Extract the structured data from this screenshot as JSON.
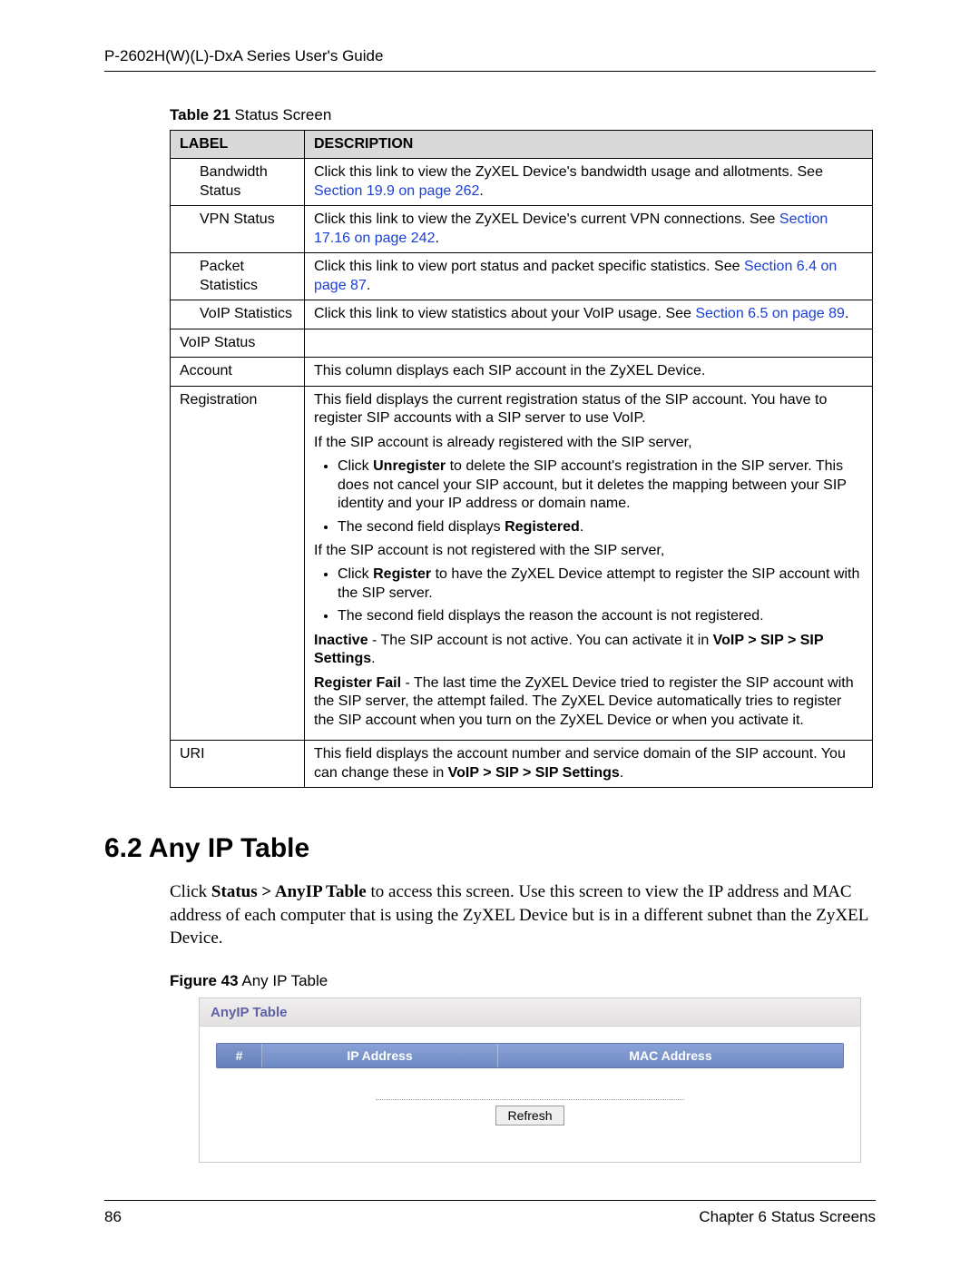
{
  "header": {
    "text": "P-2602H(W)(L)-DxA Series User's Guide"
  },
  "table_caption": {
    "bold": "Table 21",
    "rest": "   Status Screen"
  },
  "table": {
    "head": {
      "label": "LABEL",
      "desc": "DESCRIPTION"
    },
    "rows": {
      "bandwidth": {
        "label_html": "<span class=\"indent-sub\">Bandwidth Status</span>",
        "desc_html": "Click this link to view the ZyXEL Device's bandwidth usage and allotments. See <span class=\"link\">Section 19.9 on page 262</span>."
      },
      "vpn": {
        "label_html": "<span class=\"indent-sub\">VPN Status</span>",
        "desc_html": "Click this link to view the ZyXEL Device's current VPN connections. See <span class=\"link\">Section 17.16 on page 242</span>."
      },
      "packet": {
        "label_html": "<span class=\"indent-sub\">Packet Statistics</span>",
        "desc_html": "Click this link to view port status and packet specific statistics. See <span class=\"link\">Section 6.4 on page 87</span>."
      },
      "voipstats": {
        "label_html": "<span class=\"indent-sub\">VoIP Statistics</span>",
        "desc_html": "Click this link to view statistics about your VoIP usage. See <span class=\"link\">Section 6.5 on page 89</span>."
      },
      "voipstatus": {
        "label_html": "VoIP Status",
        "desc_html": ""
      },
      "account": {
        "label_html": "Account",
        "desc_html": "This column displays each SIP account in the ZyXEL Device."
      },
      "registration": {
        "label_html": "Registration",
        "desc_html": "<div class=\"para-block\"><p>This field displays the current registration status of the SIP account. You have to register SIP accounts with a SIP server to use VoIP.</p><p>If the SIP account is already registered with the SIP server,</p><ul><li>Click <b>Unregister</b> to delete the SIP account's registration in the SIP server. This does not cancel your SIP account, but it deletes the mapping between your SIP identity and your IP address or domain name.</li><li>The second field displays <b>Registered</b>.</li></ul><p>If the SIP account is not registered with the SIP server,</p><ul><li>Click <b>Register</b> to have the ZyXEL Device attempt to register the SIP account with the SIP server.</li><li>The second field displays the reason the account is not registered.</li></ul><p><b>Inactive</b> - The SIP account is not active. You can activate it in <b>VoIP &gt; SIP &gt; SIP Settings</b>.</p><p><b>Register Fail</b> - The last time the ZyXEL Device tried to register the SIP account with the SIP server, the attempt failed. The ZyXEL Device automatically tries to register the SIP account when you turn on the ZyXEL Device or when you activate it.</p></div>"
      },
      "uri": {
        "label_html": "URI",
        "desc_html": "This field displays the account number and service domain of the SIP account. You can change these in <b>VoIP &gt; SIP &gt; SIP Settings</b>."
      }
    }
  },
  "section": {
    "heading": "6.2  Any IP Table",
    "body_html": "Click <b>Status &gt; AnyIP Table</b> to access this screen. Use this screen to view the IP address and MAC address of each computer that is using the ZyXEL Device but is in a different subnet than the ZyXEL Device."
  },
  "figure_caption": {
    "bold": "Figure 43",
    "rest": "   Any IP Table"
  },
  "screenshot": {
    "title": "AnyIP Table",
    "columns": {
      "num": "#",
      "ip": "IP Address",
      "mac": "MAC Address"
    },
    "refresh": "Refresh"
  },
  "footer": {
    "page": "86",
    "chapter": "Chapter 6 Status Screens"
  }
}
